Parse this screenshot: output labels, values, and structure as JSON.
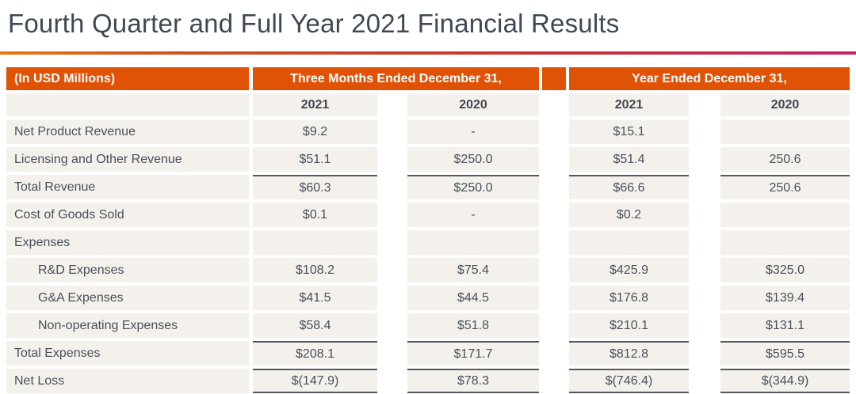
{
  "title": "Fourth Quarter and Full Year 2021 Financial Results",
  "colors": {
    "header_orange": "#E05206",
    "cell_background": "#F4F1EC",
    "text": "#47505A",
    "total_line": "#54575B",
    "rule_gradient_left": "#E8790E",
    "rule_gradient_mid": "#C8382A",
    "rule_gradient_right": "#C22368"
  },
  "table": {
    "corner_label": "(In USD Millions)",
    "col_groups": [
      {
        "label": "Three Months Ended December 31,"
      },
      {
        "label": "Year Ended December 31,"
      }
    ],
    "year_headers": [
      "2021",
      "2020",
      "2021",
      "2020"
    ],
    "rows": [
      {
        "label": "Net Product Revenue",
        "indent": false,
        "values": [
          "$9.2",
          "-",
          "$15.1",
          ""
        ],
        "top_border": false,
        "bottom_border": false
      },
      {
        "label": "Licensing and Other Revenue",
        "indent": false,
        "values": [
          "$51.1",
          "$250.0",
          "$51.4",
          "250.6"
        ],
        "top_border": false,
        "bottom_border": false
      },
      {
        "label": "Total Revenue",
        "indent": false,
        "values": [
          "$60.3",
          "$250.0",
          "$66.6",
          "250.6"
        ],
        "top_border": true,
        "bottom_border": false
      },
      {
        "label": "Cost of Goods Sold",
        "indent": false,
        "values": [
          "$0.1",
          "-",
          "$0.2",
          ""
        ],
        "top_border": false,
        "bottom_border": false
      },
      {
        "label": "Expenses",
        "indent": false,
        "values": [
          "",
          "",
          "",
          ""
        ],
        "top_border": false,
        "bottom_border": false
      },
      {
        "label": "R&D Expenses",
        "indent": true,
        "values": [
          "$108.2",
          "$75.4",
          "$425.9",
          "$325.0"
        ],
        "top_border": false,
        "bottom_border": false
      },
      {
        "label": "G&A Expenses",
        "indent": true,
        "values": [
          "$41.5",
          "$44.5",
          "$176.8",
          "$139.4"
        ],
        "top_border": false,
        "bottom_border": false
      },
      {
        "label": "Non-operating Expenses",
        "indent": true,
        "values": [
          "$58.4",
          "$51.8",
          "$210.1",
          "$131.1"
        ],
        "top_border": false,
        "bottom_border": false
      },
      {
        "label": "Total Expenses",
        "indent": false,
        "values": [
          "$208.1",
          "$171.7",
          "$812.8",
          "$595.5"
        ],
        "top_border": true,
        "bottom_border": false
      },
      {
        "label": "Net Loss",
        "indent": false,
        "values": [
          "$(147.9)",
          "$78.3",
          "$(746.4)",
          "$(344.9)"
        ],
        "top_border": true,
        "bottom_border": true
      }
    ]
  }
}
